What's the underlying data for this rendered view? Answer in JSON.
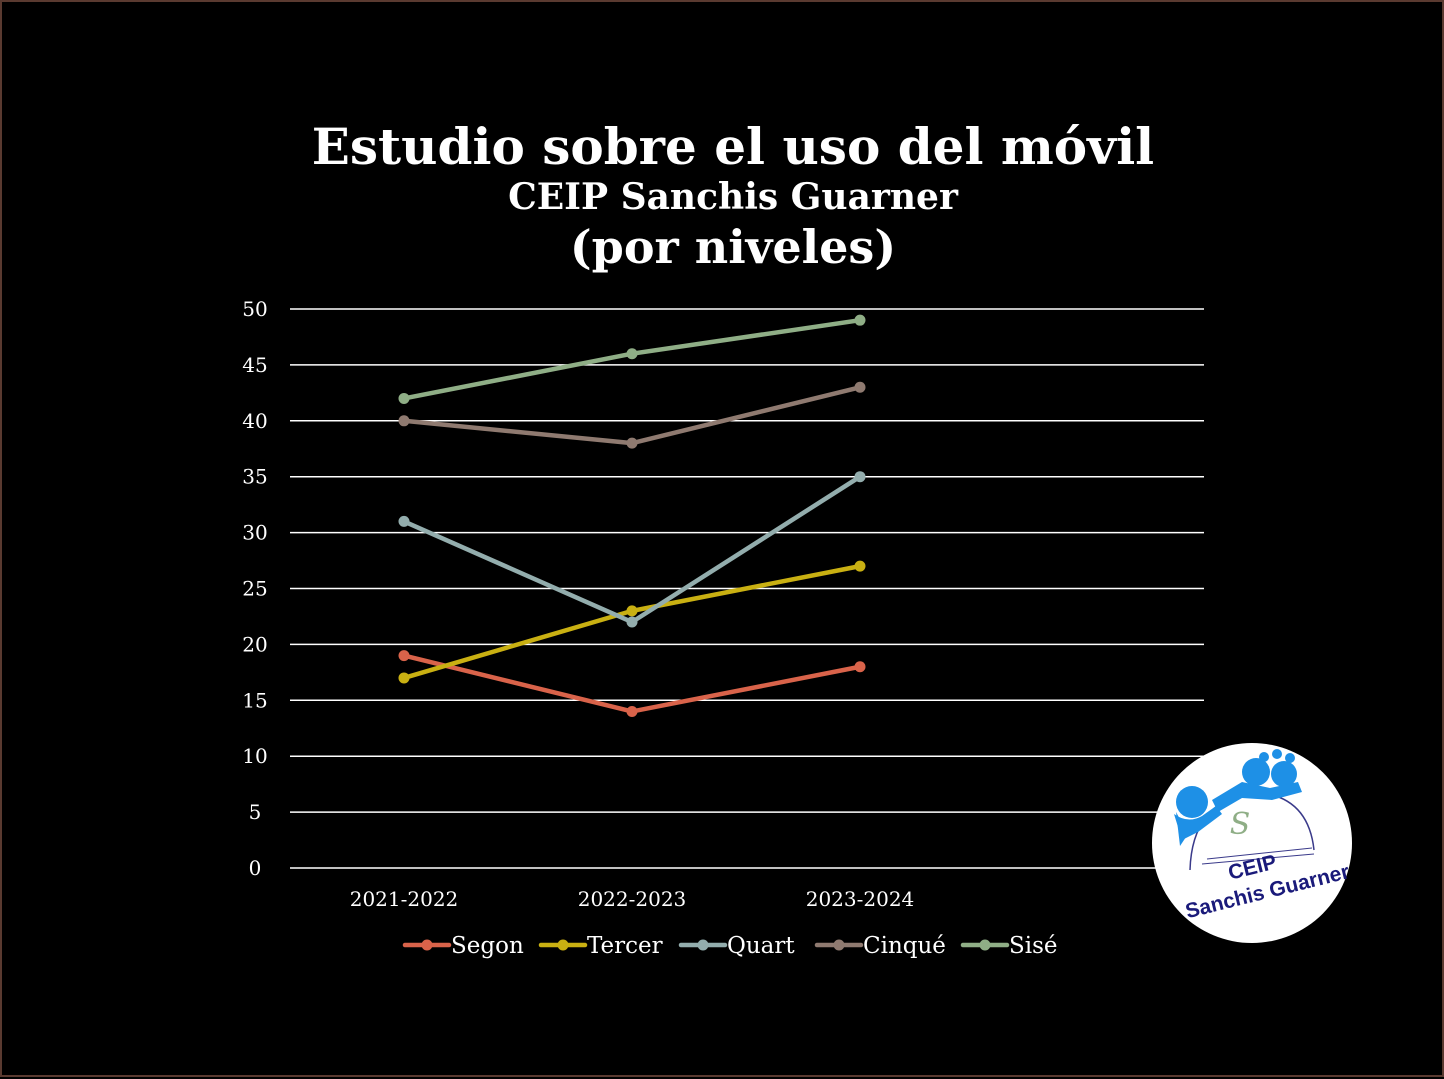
{
  "chart_data": {
    "type": "line",
    "title": "Estudio sobre el uso del móvil",
    "subtitle": "CEIP Sanchis Guarner",
    "subtitle2": "(por niveles)",
    "xlabel": "",
    "ylabel": "",
    "categories": [
      "2021-2022",
      "2022-2023",
      "2023-2024"
    ],
    "ylim": [
      0,
      50
    ],
    "yticks": [
      0,
      5,
      10,
      15,
      20,
      25,
      30,
      35,
      40,
      45,
      50
    ],
    "grid": true,
    "legend_position": "bottom",
    "series": [
      {
        "name": "Segon",
        "values": [
          19,
          14,
          18
        ],
        "color": "#d9634a"
      },
      {
        "name": "Tercer",
        "values": [
          17,
          23,
          27
        ],
        "color": "#c9b012"
      },
      {
        "name": "Quart",
        "values": [
          31,
          22,
          35
        ],
        "color": "#93adad"
      },
      {
        "name": "Cinqué",
        "values": [
          40,
          38,
          43
        ],
        "color": "#8f7a70"
      },
      {
        "name": "Sisé",
        "values": [
          42,
          46,
          49
        ],
        "color": "#8fae86"
      }
    ]
  },
  "logo": {
    "line1": "CEIP",
    "line2": "Sanchis Guarner",
    "primary_color": "#1e90e6",
    "text_color": "#1a1a7a"
  },
  "colors": {
    "background": "#000000",
    "gridline": "#ffffff",
    "text": "#ffffff"
  }
}
